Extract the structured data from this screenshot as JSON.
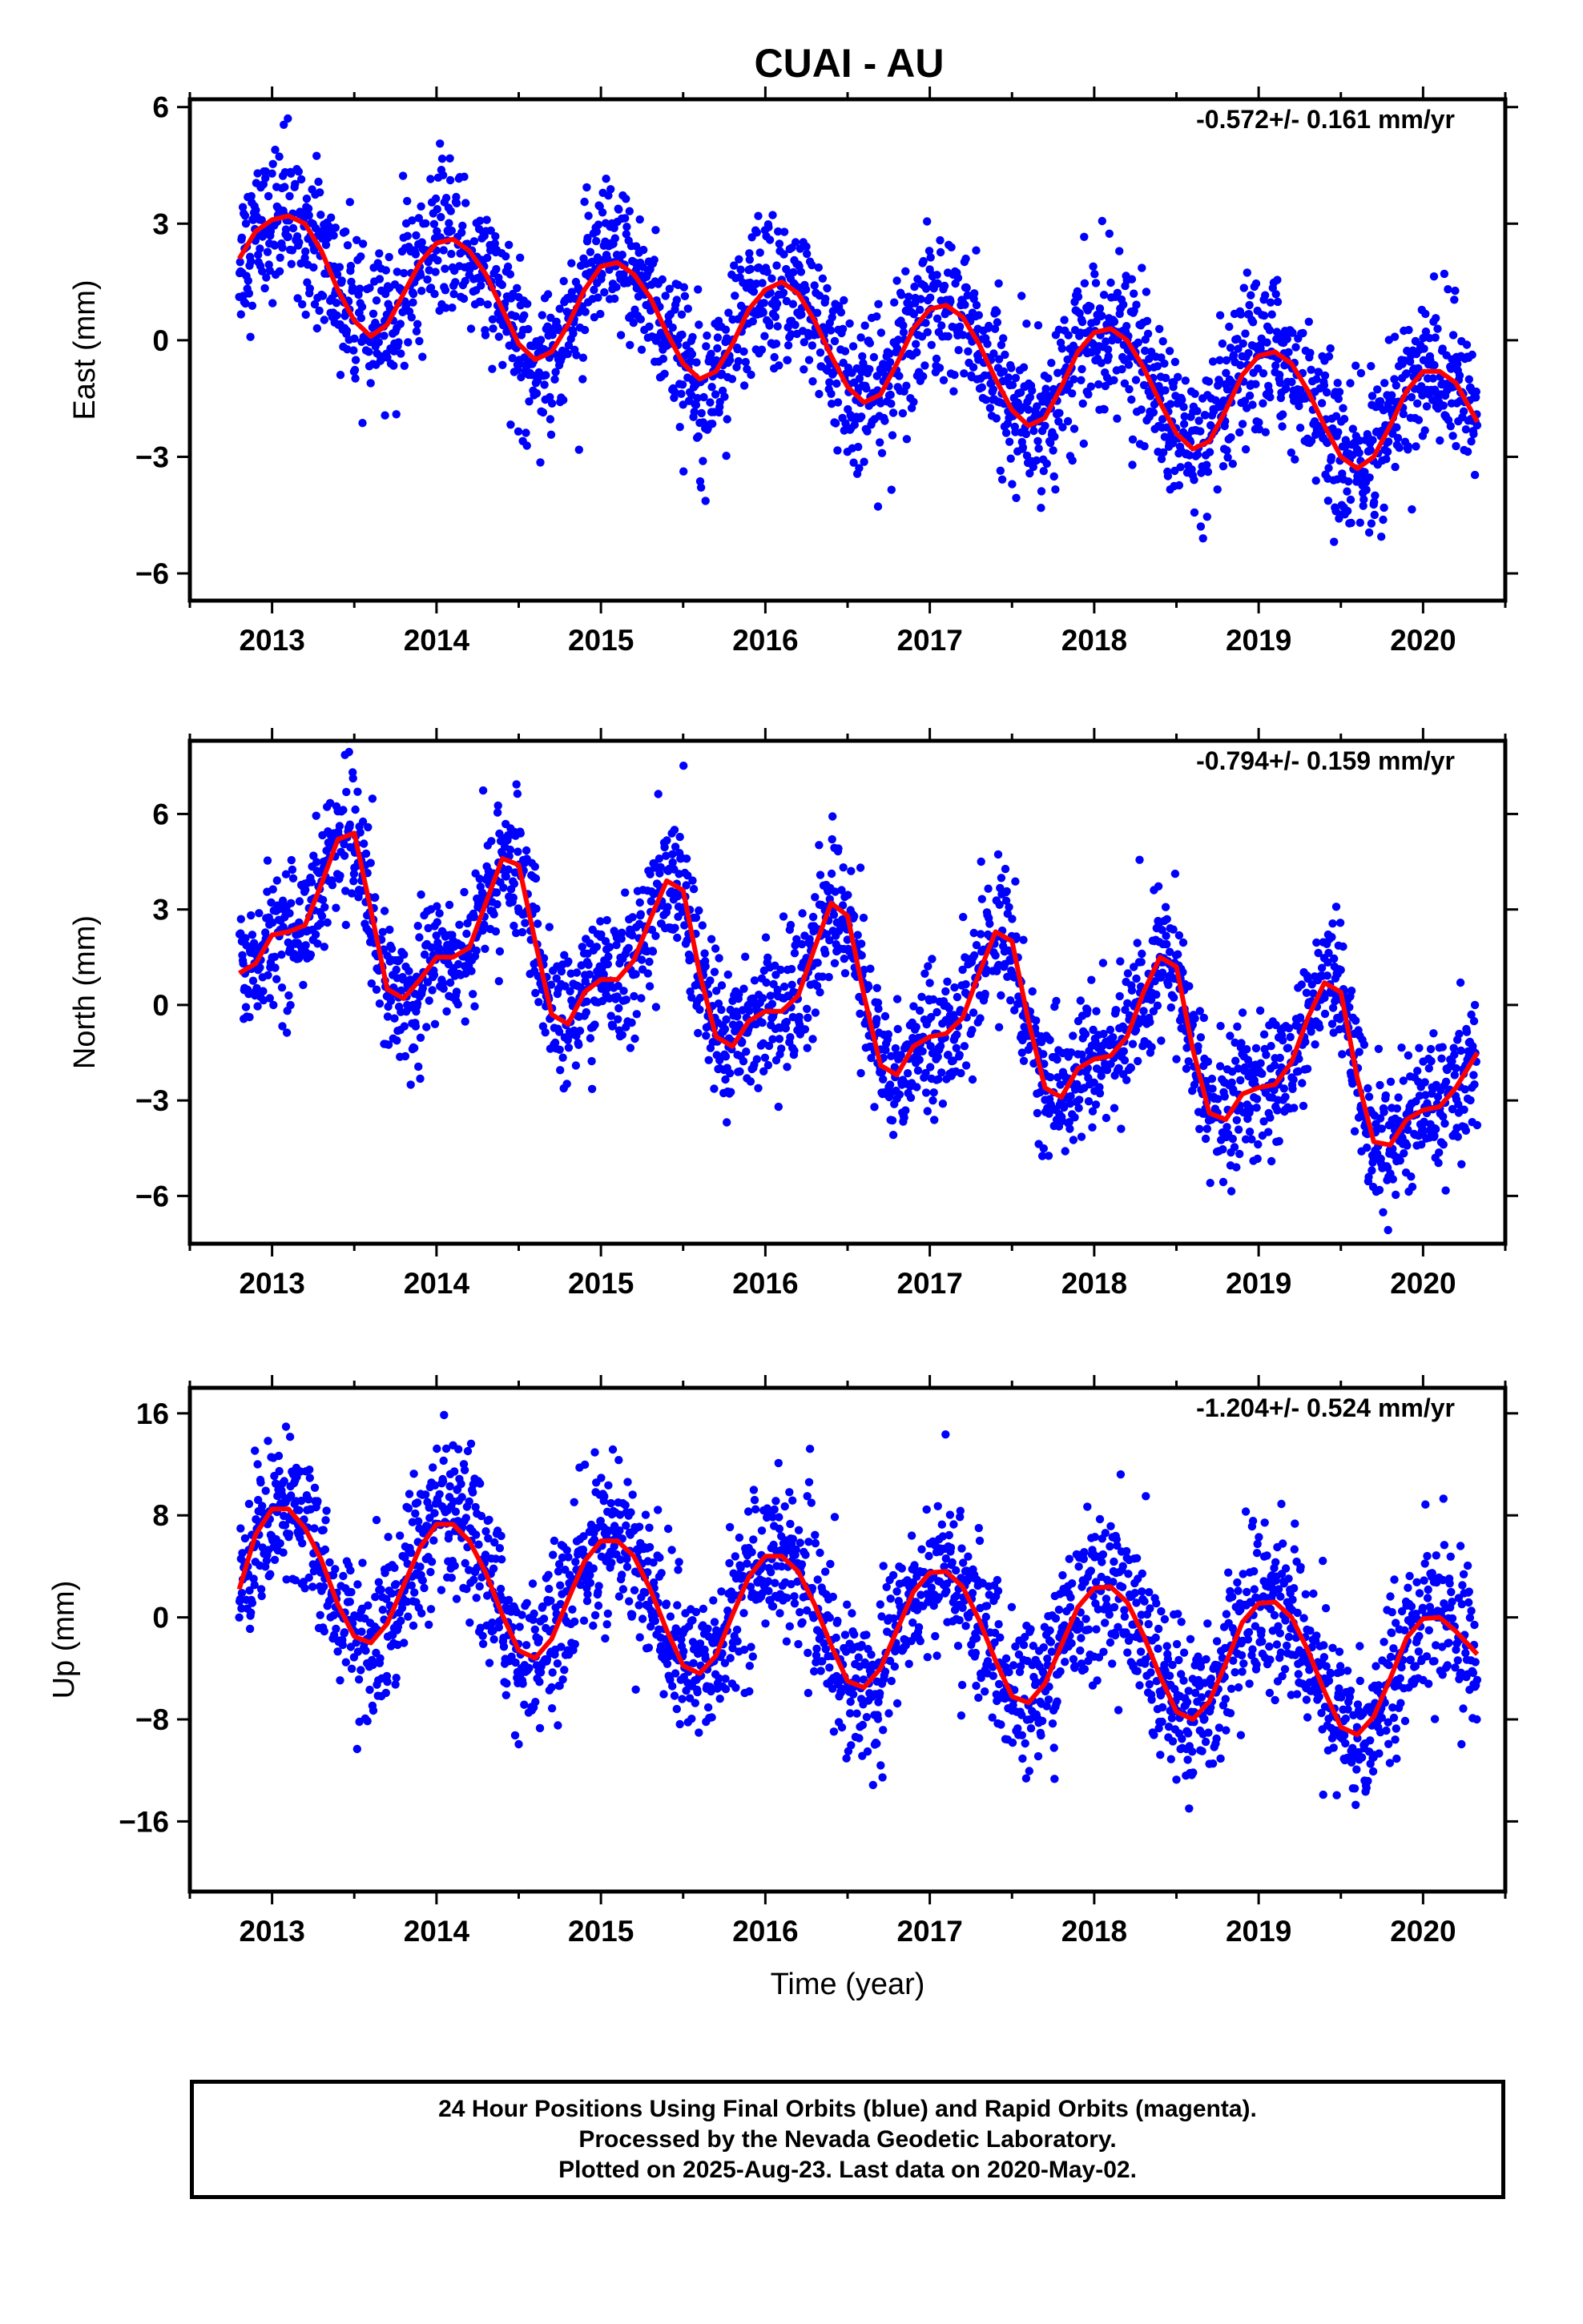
{
  "title": "CUAI - AU",
  "colors": {
    "data": "#0000ff",
    "fit": "#ff0000",
    "frame": "#000000",
    "background": "#ffffff"
  },
  "chart_data": [
    {
      "type": "scatter",
      "name": "east",
      "ylabel": "East (mm)",
      "xlabel": "",
      "xlim": [
        2012.5,
        2020.5
      ],
      "ylim": [
        -6.7,
        6.2
      ],
      "yticks": [
        6,
        3,
        0,
        -3,
        -6
      ],
      "xticks": [
        2013,
        2014,
        2015,
        2016,
        2017,
        2018,
        2019,
        2020
      ],
      "rate_label": "-0.572+/- 0.161 mm/yr",
      "series": [
        {
          "kind": "fit-curve",
          "x": [
            2012.8,
            2012.9,
            2013.0,
            2013.1,
            2013.2,
            2013.3,
            2013.4,
            2013.5,
            2013.6,
            2013.7,
            2013.8,
            2013.9,
            2014.0,
            2014.1,
            2014.2,
            2014.3,
            2014.4,
            2014.5,
            2014.6,
            2014.7,
            2014.8,
            2014.9,
            2015.0,
            2015.1,
            2015.2,
            2015.3,
            2015.4,
            2015.5,
            2015.6,
            2015.7,
            2015.8,
            2015.9,
            2016.0,
            2016.1,
            2016.2,
            2016.3,
            2016.4,
            2016.5,
            2016.6,
            2016.7,
            2016.8,
            2016.9,
            2017.0,
            2017.1,
            2017.2,
            2017.3,
            2017.4,
            2017.5,
            2017.6,
            2017.7,
            2017.8,
            2017.9,
            2018.0,
            2018.1,
            2018.2,
            2018.3,
            2018.4,
            2018.5,
            2018.6,
            2018.7,
            2018.8,
            2018.9,
            2019.0,
            2019.1,
            2019.2,
            2019.3,
            2019.4,
            2019.5,
            2019.6,
            2019.7,
            2019.8,
            2019.9,
            2020.0,
            2020.1,
            2020.2,
            2020.33
          ],
          "y": [
            2.1,
            2.8,
            3.1,
            3.2,
            3.0,
            2.3,
            1.3,
            0.5,
            0.1,
            0.4,
            1.2,
            2.0,
            2.5,
            2.6,
            2.3,
            1.7,
            0.8,
            -0.1,
            -0.5,
            -0.3,
            0.4,
            1.3,
            1.9,
            2.0,
            1.7,
            1.1,
            0.2,
            -0.6,
            -1.0,
            -0.8,
            -0.1,
            0.8,
            1.3,
            1.5,
            1.2,
            0.5,
            -0.4,
            -1.2,
            -1.6,
            -1.4,
            -0.6,
            0.3,
            0.8,
            0.9,
            0.6,
            -0.1,
            -1.0,
            -1.8,
            -2.2,
            -2.0,
            -1.2,
            -0.3,
            0.2,
            0.3,
            0.0,
            -0.7,
            -1.6,
            -2.4,
            -2.8,
            -2.6,
            -1.8,
            -0.9,
            -0.4,
            -0.3,
            -0.6,
            -1.3,
            -2.2,
            -3.0,
            -3.3,
            -3.0,
            -2.2,
            -1.3,
            -0.8,
            -0.8,
            -1.1,
            -2.1
          ]
        }
      ]
    },
    {
      "type": "scatter",
      "name": "north",
      "ylabel": "North (mm)",
      "xlabel": "",
      "xlim": [
        2012.5,
        2020.5
      ],
      "ylim": [
        -7.5,
        8.3
      ],
      "yticks": [
        6,
        3,
        0,
        -3,
        -6
      ],
      "xticks": [
        2013,
        2014,
        2015,
        2016,
        2017,
        2018,
        2019,
        2020
      ],
      "rate_label": "-0.794+/- 0.159 mm/yr",
      "series": [
        {
          "kind": "fit-curve",
          "x": [
            2012.8,
            2012.9,
            2013.0,
            2013.1,
            2013.2,
            2013.3,
            2013.4,
            2013.5,
            2013.6,
            2013.7,
            2013.8,
            2013.9,
            2014.0,
            2014.1,
            2014.2,
            2014.3,
            2014.4,
            2014.5,
            2014.6,
            2014.7,
            2014.8,
            2014.9,
            2015.0,
            2015.1,
            2015.2,
            2015.3,
            2015.4,
            2015.5,
            2015.6,
            2015.7,
            2015.8,
            2015.9,
            2016.0,
            2016.1,
            2016.2,
            2016.3,
            2016.4,
            2016.5,
            2016.6,
            2016.7,
            2016.8,
            2016.9,
            2017.0,
            2017.1,
            2017.2,
            2017.3,
            2017.4,
            2017.5,
            2017.6,
            2017.7,
            2017.8,
            2017.9,
            2018.0,
            2018.1,
            2018.2,
            2018.3,
            2018.4,
            2018.5,
            2018.6,
            2018.7,
            2018.8,
            2018.9,
            2019.0,
            2019.1,
            2019.2,
            2019.3,
            2019.4,
            2019.5,
            2019.6,
            2019.7,
            2019.8,
            2019.9,
            2020.0,
            2020.1,
            2020.2,
            2020.33
          ],
          "y": [
            1.0,
            1.3,
            2.2,
            2.3,
            2.5,
            3.8,
            5.2,
            5.4,
            3.0,
            0.5,
            0.2,
            0.8,
            1.5,
            1.5,
            1.8,
            3.2,
            4.6,
            4.4,
            2.0,
            -0.3,
            -0.6,
            0.4,
            0.8,
            0.8,
            1.4,
            2.7,
            3.9,
            3.6,
            1.0,
            -1.0,
            -1.3,
            -0.5,
            -0.2,
            -0.2,
            0.3,
            1.8,
            3.2,
            2.8,
            0.3,
            -1.9,
            -2.2,
            -1.3,
            -1.0,
            -0.9,
            -0.4,
            1.0,
            2.3,
            2.0,
            -0.5,
            -2.6,
            -2.9,
            -2.0,
            -1.7,
            -1.6,
            -1.0,
            0.4,
            1.5,
            1.2,
            -1.4,
            -3.4,
            -3.6,
            -2.8,
            -2.6,
            -2.5,
            -1.8,
            -0.4,
            0.7,
            0.4,
            -2.3,
            -4.3,
            -4.4,
            -3.6,
            -3.3,
            -3.2,
            -2.6,
            -1.5
          ]
        }
      ]
    },
    {
      "type": "scatter",
      "name": "up",
      "ylabel": "Up (mm)",
      "xlabel": "Time (year)",
      "xlim": [
        2012.5,
        2020.5
      ],
      "ylim": [
        -21.5,
        18.0
      ],
      "yticks": [
        16,
        8,
        0,
        -8,
        -16
      ],
      "xticks": [
        2013,
        2014,
        2015,
        2016,
        2017,
        2018,
        2019,
        2020
      ],
      "rate_label": "-1.204+/- 0.524 mm/yr",
      "series": [
        {
          "kind": "fit-curve",
          "x": [
            2012.8,
            2012.9,
            2013.0,
            2013.1,
            2013.2,
            2013.3,
            2013.4,
            2013.5,
            2013.6,
            2013.7,
            2013.8,
            2013.9,
            2014.0,
            2014.1,
            2014.2,
            2014.3,
            2014.4,
            2014.5,
            2014.6,
            2014.7,
            2014.8,
            2014.9,
            2015.0,
            2015.1,
            2015.2,
            2015.3,
            2015.4,
            2015.5,
            2015.6,
            2015.7,
            2015.8,
            2015.9,
            2016.0,
            2016.1,
            2016.2,
            2016.3,
            2016.4,
            2016.5,
            2016.6,
            2016.7,
            2016.8,
            2016.9,
            2017.0,
            2017.1,
            2017.2,
            2017.3,
            2017.4,
            2017.5,
            2017.6,
            2017.7,
            2017.8,
            2017.9,
            2018.0,
            2018.1,
            2018.2,
            2018.3,
            2018.4,
            2018.5,
            2018.6,
            2018.7,
            2018.8,
            2018.9,
            2019.0,
            2019.1,
            2019.2,
            2019.3,
            2019.4,
            2019.5,
            2019.6,
            2019.7,
            2019.8,
            2019.9,
            2020.0,
            2020.1,
            2020.2,
            2020.33
          ],
          "y": [
            2.2,
            6.5,
            8.5,
            8.5,
            7.0,
            4.5,
            1.0,
            -1.5,
            -2.0,
            -0.5,
            2.5,
            5.5,
            7.3,
            7.3,
            6.0,
            3.5,
            0.2,
            -2.6,
            -3.2,
            -1.7,
            1.4,
            4.4,
            6.0,
            6.0,
            4.8,
            2.2,
            -1.0,
            -3.8,
            -4.4,
            -3.0,
            0.2,
            3.2,
            4.8,
            4.8,
            3.6,
            1.0,
            -2.2,
            -5.0,
            -5.5,
            -4.0,
            -1.0,
            2.0,
            3.5,
            3.6,
            2.4,
            -0.2,
            -3.4,
            -6.2,
            -6.7,
            -5.2,
            -2.2,
            0.8,
            2.3,
            2.4,
            1.2,
            -1.4,
            -4.6,
            -7.4,
            -8.0,
            -6.6,
            -3.6,
            -0.4,
            1.1,
            1.2,
            0.0,
            -2.6,
            -5.8,
            -8.6,
            -9.2,
            -7.8,
            -4.8,
            -1.6,
            -0.1,
            0.0,
            -1.1,
            -2.9
          ]
        }
      ]
    }
  ],
  "footer": {
    "line1": "24 Hour Positions Using Final Orbits (blue) and Rapid Orbits (magenta).",
    "line2": "Processed by the Nevada Geodetic Laboratory.",
    "line3": "Plotted on 2025-Aug-23. Last data on 2020-May-02."
  }
}
